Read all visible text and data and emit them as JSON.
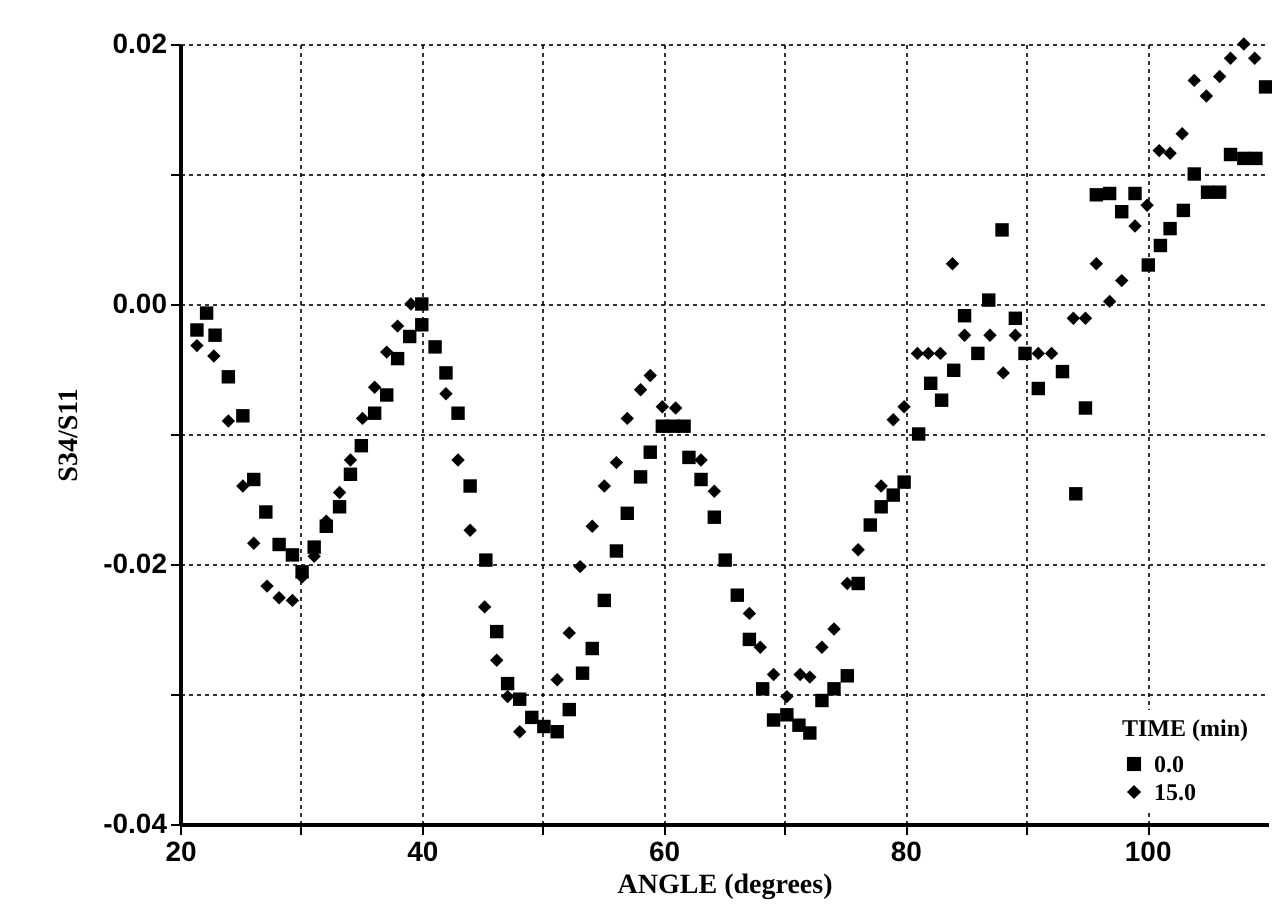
{
  "chart_data": {
    "type": "scatter",
    "xlabel": "ANGLE (degrees)",
    "ylabel": "S34/S11",
    "legend_title": "TIME (min)",
    "legend": "bottom right",
    "grid": true,
    "xlim": [
      20,
      110
    ],
    "xticks": [
      20,
      {
        "value": 30,
        "label": null
      },
      40,
      {
        "value": 50,
        "label": null
      },
      60,
      {
        "value": 70,
        "label": null
      },
      80,
      {
        "value": 90,
        "label": null
      },
      100
    ],
    "ylim": [
      -0.04,
      0.02
    ],
    "yticks": [
      -0.04,
      {
        "value": -0.03,
        "label": null
      },
      -0.02,
      {
        "value": -0.01,
        "label": null
      },
      {
        "value": 0,
        "label": "0.00"
      },
      {
        "value": 0.01,
        "label": null
      },
      0.02
    ],
    "series": [
      {
        "name": "0.0",
        "color": "#000000",
        "marker": "square",
        "x": [
          21.4,
          22.2,
          22.9,
          24.0,
          25.2,
          26.1,
          27.1,
          28.2,
          29.3,
          30.1,
          31.1,
          32.1,
          33.2,
          34.1,
          35.0,
          36.1,
          37.1,
          38.0,
          39.0,
          40.0,
          40.0,
          41.1,
          42.0,
          43.0,
          44.0,
          45.3,
          46.2,
          47.1,
          48.1,
          49.1,
          50.1,
          51.2,
          52.2,
          53.3,
          54.1,
          55.1,
          56.1,
          57.0,
          58.1,
          58.9,
          59.9,
          60.8,
          61.7,
          62.1,
          63.1,
          64.2,
          65.1,
          66.1,
          67.1,
          68.2,
          69.1,
          70.2,
          71.2,
          72.1,
          73.1,
          74.1,
          75.2,
          76.1,
          77.1,
          78.0,
          79.0,
          79.9,
          81.1,
          82.1,
          83.0,
          84.0,
          84.9,
          86.0,
          86.9,
          88.0,
          89.1,
          89.9,
          91.0,
          93.0,
          94.1,
          94.9,
          95.8,
          96.9,
          97.9,
          99.0,
          100.1,
          101.1,
          101.9,
          103.0,
          103.9,
          105.0,
          106.0,
          106.9,
          108.0,
          109.0,
          109.8
        ],
        "values": [
          -0.002,
          -0.0007,
          -0.0024,
          -0.0056,
          -0.0086,
          -0.0135,
          -0.016,
          -0.0185,
          -0.0193,
          -0.0206,
          -0.0187,
          -0.0171,
          -0.0156,
          -0.0131,
          -0.0109,
          -0.0084,
          -0.007,
          -0.0042,
          -0.0025,
          -0.0016,
          0.0,
          -0.0033,
          -0.0053,
          -0.0084,
          -0.014,
          -0.0197,
          -0.0252,
          -0.0292,
          -0.0304,
          -0.0318,
          -0.0325,
          -0.0329,
          -0.0312,
          -0.0284,
          -0.0265,
          -0.0228,
          -0.019,
          -0.0161,
          -0.0133,
          -0.0114,
          -0.0094,
          -0.0094,
          -0.0094,
          -0.0118,
          -0.0135,
          -0.0164,
          -0.0197,
          -0.0224,
          -0.0258,
          -0.0296,
          -0.032,
          -0.0316,
          -0.0324,
          -0.033,
          -0.0305,
          -0.0296,
          -0.0286,
          -0.0215,
          -0.017,
          -0.0156,
          -0.0147,
          -0.0137,
          -0.01,
          -0.0061,
          -0.0074,
          -0.0051,
          -0.0009,
          -0.0038,
          0.0003,
          0.0057,
          -0.0011,
          -0.0038,
          -0.0065,
          -0.0052,
          -0.0146,
          -0.008,
          0.0084,
          0.0085,
          0.0071,
          0.0085,
          0.003,
          0.0045,
          0.0058,
          0.0072,
          0.01,
          0.0086,
          0.0086,
          0.0115,
          0.0112,
          0.0112,
          0.0167
        ]
      },
      {
        "name": "15.0",
        "color": "#000000",
        "marker": "diamond",
        "x": [
          21.4,
          22.8,
          24.0,
          25.2,
          26.1,
          27.2,
          28.2,
          29.3,
          30.1,
          31.1,
          32.1,
          33.2,
          34.1,
          35.1,
          36.1,
          37.1,
          38.0,
          39.1,
          42.0,
          43.0,
          44.0,
          45.2,
          46.2,
          47.1,
          48.1,
          51.2,
          52.2,
          53.1,
          54.1,
          55.1,
          56.1,
          57.0,
          58.1,
          58.9,
          59.9,
          61.0,
          63.1,
          64.2,
          67.1,
          68.0,
          69.1,
          70.2,
          71.3,
          72.1,
          73.1,
          74.1,
          75.2,
          76.1,
          78.0,
          79.0,
          79.9,
          81.0,
          81.9,
          82.9,
          83.9,
          84.9,
          87.0,
          88.1,
          89.1,
          91.0,
          92.1,
          93.9,
          94.9,
          95.8,
          96.9,
          97.9,
          99.0,
          100.0,
          101.0,
          101.9,
          102.9,
          103.9,
          104.9,
          106.0,
          106.9,
          108.0,
          108.9
        ],
        "values": [
          -0.0032,
          -0.004,
          -0.009,
          -0.014,
          -0.0184,
          -0.0217,
          -0.0226,
          -0.0228,
          -0.021,
          -0.0194,
          -0.0167,
          -0.0145,
          -0.012,
          -0.0088,
          -0.0064,
          -0.0037,
          -0.0017,
          0.0,
          -0.0069,
          -0.012,
          -0.0174,
          -0.0233,
          -0.0274,
          -0.0302,
          -0.0329,
          -0.0289,
          -0.0253,
          -0.0202,
          -0.0171,
          -0.014,
          -0.0122,
          -0.0088,
          -0.0066,
          -0.0055,
          -0.0079,
          -0.008,
          -0.012,
          -0.0144,
          -0.0238,
          -0.0264,
          -0.0285,
          -0.0302,
          -0.0285,
          -0.0287,
          -0.0264,
          -0.025,
          -0.0215,
          -0.0189,
          -0.014,
          -0.0089,
          -0.0079,
          -0.0038,
          -0.0038,
          -0.0038,
          0.0031,
          -0.0024,
          -0.0024,
          -0.0053,
          -0.0024,
          -0.0038,
          -0.0038,
          -0.0011,
          -0.0011,
          0.0031,
          0.0002,
          0.0018,
          0.006,
          0.0076,
          0.0118,
          0.0116,
          0.0131,
          0.0172,
          0.016,
          0.0175,
          0.0189,
          0.02,
          0.0189
        ]
      }
    ]
  }
}
